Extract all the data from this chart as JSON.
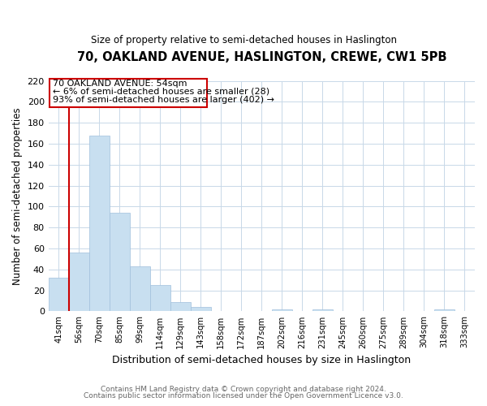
{
  "title": "70, OAKLAND AVENUE, HASLINGTON, CREWE, CW1 5PB",
  "subtitle": "Size of property relative to semi-detached houses in Haslington",
  "xlabel": "Distribution of semi-detached houses by size in Haslington",
  "ylabel": "Number of semi-detached properties",
  "bar_labels": [
    "41sqm",
    "56sqm",
    "70sqm",
    "85sqm",
    "99sqm",
    "114sqm",
    "129sqm",
    "143sqm",
    "158sqm",
    "172sqm",
    "187sqm",
    "202sqm",
    "216sqm",
    "231sqm",
    "245sqm",
    "260sqm",
    "275sqm",
    "289sqm",
    "304sqm",
    "318sqm",
    "333sqm"
  ],
  "bar_values": [
    32,
    56,
    168,
    94,
    43,
    25,
    9,
    4,
    0,
    0,
    0,
    2,
    0,
    2,
    0,
    0,
    0,
    0,
    0,
    2,
    0
  ],
  "bar_color": "#c8dff0",
  "bar_edge_color": "#a0c0dc",
  "vline_color": "#cc0000",
  "vline_x_index": 1,
  "ylim": [
    0,
    220
  ],
  "yticks": [
    0,
    20,
    40,
    60,
    80,
    100,
    120,
    140,
    160,
    180,
    200,
    220
  ],
  "annotation_title": "70 OAKLAND AVENUE: 54sqm",
  "annotation_line1": "← 6% of semi-detached houses are smaller (28)",
  "annotation_line2": "93% of semi-detached houses are larger (402) →",
  "footer_line1": "Contains HM Land Registry data © Crown copyright and database right 2024.",
  "footer_line2": "Contains public sector information licensed under the Open Government Licence v3.0.",
  "background_color": "#ffffff",
  "grid_color": "#c8d8e8"
}
